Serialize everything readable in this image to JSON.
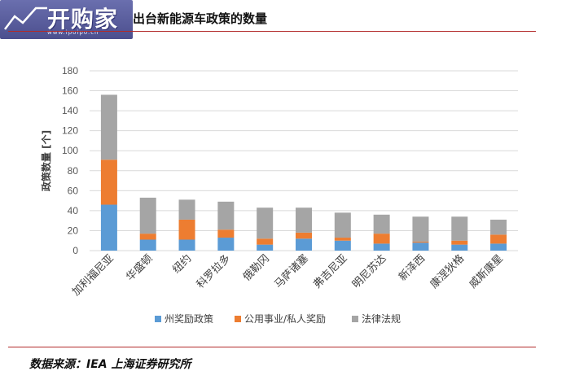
{
  "header": {
    "logo_text": "开购家",
    "logo_url": "www.ipoipo.cn",
    "title": "出台新能源车政策的数量"
  },
  "footer": {
    "source": "数据来源：IEA 上海证券研究所"
  },
  "colors": {
    "series1": "#5b9bd5",
    "series2": "#ed7d31",
    "series3": "#a5a5a5",
    "rule": "#b22a2a",
    "grid": "#d9d9d9"
  },
  "chart_data": {
    "type": "bar",
    "stacked": true,
    "ylabel": "政策数量 [个]",
    "ylim": [
      0,
      180
    ],
    "yticks": [
      0,
      20,
      40,
      60,
      80,
      100,
      120,
      140,
      160,
      180
    ],
    "grid": true,
    "legend_position": "bottom",
    "categories": [
      "加利福尼亚",
      "华盛顿",
      "纽约",
      "科罗拉多",
      "俄勒冈",
      "马萨诸塞",
      "弗吉尼亚",
      "明尼苏达",
      "新泽西",
      "康涅狄格",
      "威斯康星"
    ],
    "series": [
      {
        "name": "州奖励政策",
        "values": [
          46,
          11,
          11,
          13,
          6,
          12,
          10,
          7,
          8,
          6,
          7
        ]
      },
      {
        "name": "公用事业/私人奖励",
        "values": [
          45,
          6,
          20,
          8,
          6,
          6,
          3,
          10,
          1,
          4,
          9
        ]
      },
      {
        "name": "法律法规",
        "values": [
          65,
          36,
          20,
          28,
          31,
          25,
          25,
          19,
          25,
          24,
          15
        ]
      }
    ]
  }
}
